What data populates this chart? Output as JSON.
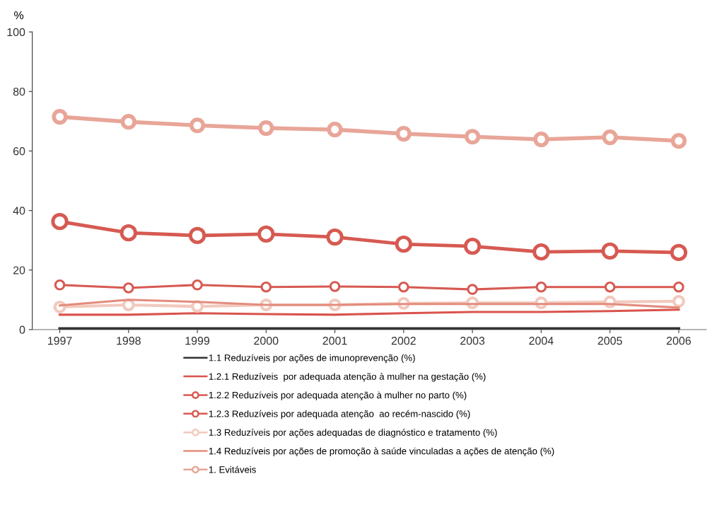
{
  "chart_data": {
    "type": "line",
    "ylabel": "%",
    "categories": [
      "1997",
      "1998",
      "1999",
      "2000",
      "2001",
      "2002",
      "2003",
      "2004",
      "2005",
      "2006"
    ],
    "ylim": [
      0,
      100
    ],
    "yticks": [
      0,
      20,
      40,
      60,
      80,
      100
    ],
    "grid": false,
    "legend": "bottom",
    "series": [
      {
        "name": "1.1 Reduzíveis por ações de imunoprevenção (%)",
        "color": "#333333",
        "marker": "none",
        "values": [
          0.3,
          0.3,
          0.3,
          0.3,
          0.3,
          0.3,
          0.3,
          0.3,
          0.3,
          0.3
        ]
      },
      {
        "name": "1.2.1 Reduzíveis  por adequada atenção à mulher na gestação (%)",
        "color": "#d9534c",
        "marker": "none",
        "values": [
          5.0,
          5.0,
          5.5,
          5.2,
          5.0,
          5.5,
          5.9,
          5.9,
          6.2,
          6.7
        ]
      },
      {
        "name": "1.2.2 Reduzíveis por adequada atenção à mulher no parto (%)",
        "color": "#d65a52",
        "marker": "circle",
        "values": [
          36.3,
          32.5,
          31.6,
          32.1,
          31.1,
          28.7,
          28.0,
          26.1,
          26.4,
          25.9
        ]
      },
      {
        "name": "1.2.3 Reduzíveis por adequada atenção  ao recém-nascido (%)",
        "color": "#d65a52",
        "marker": "circle",
        "values": [
          15.0,
          14.0,
          15.0,
          14.3,
          14.5,
          14.3,
          13.5,
          14.3,
          14.3,
          14.3
        ]
      },
      {
        "name": "1.3 Reduzíveis por ações adequadas de diagnóstico e tratamento (%)",
        "color": "#f2c9bd",
        "marker": "circle",
        "values": [
          7.6,
          8.3,
          7.8,
          8.3,
          8.3,
          8.8,
          9.0,
          9.0,
          9.3,
          9.5
        ]
      },
      {
        "name": "1.4 Reduzíveis por ações de promoção à saúde vinculadas a ações de atenção (%)",
        "color": "#e38c7e",
        "marker": "none",
        "values": [
          8.1,
          10.0,
          9.3,
          8.3,
          8.3,
          8.6,
          8.6,
          8.6,
          8.6,
          7.4
        ]
      },
      {
        "name": "1. Evitáveis",
        "color": "#e8a598",
        "marker": "circle",
        "values": [
          71.5,
          69.8,
          68.6,
          67.7,
          67.2,
          65.8,
          64.8,
          63.9,
          64.6,
          63.4
        ]
      }
    ]
  }
}
